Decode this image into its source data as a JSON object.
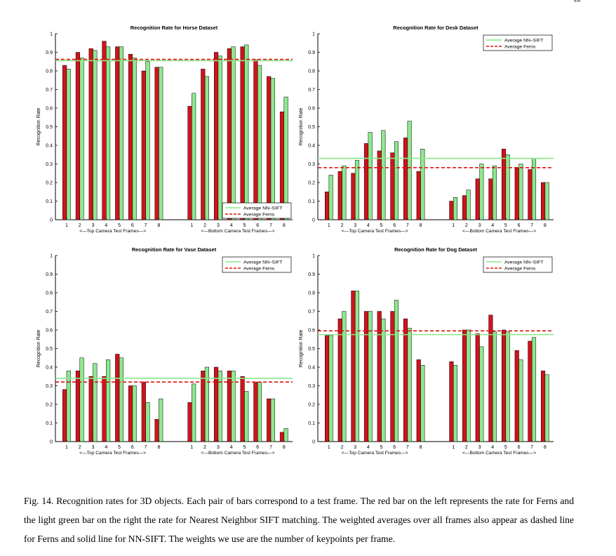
{
  "figure": {
    "caption": "Fig. 14.   Recognition rates for 3D objects. Each pair of bars correspond to a test frame. The red bar on the left represents the rate for Ferns and the light green bar on the right the rate for Nearest Neighbor SIFT matching. The weighted averages over all frames also appear as dashed line for Ferns and solid line for NN-SIFT. The weights we use are the number of keypoints per frame.",
    "page_number": "22"
  },
  "colors": {
    "ferns": "#d2121b",
    "sift": "#8ee88e",
    "ferns_line": "#e01010",
    "sift_line": "#88e888",
    "stroke": "#000000"
  },
  "chart_data": [
    {
      "type": "bar",
      "title": "Recognition Rate for Horse Dataset",
      "ylabel": "Recognition Rate",
      "ylim": [
        0,
        1
      ],
      "yticks": [
        "0",
        "0.1",
        "0.2",
        "0.3",
        "0.4",
        "0.5",
        "0.6",
        "0.7",
        "0.8",
        "0.9",
        "1"
      ],
      "group_labels": [
        "<—Top Camera Test Frames—>",
        "<—Bottom Camera Test Frames—>"
      ],
      "groups": [
        {
          "categories": [
            "1",
            "2",
            "3",
            "4",
            "5",
            "6",
            "7",
            "8"
          ],
          "ferns": [
            0.83,
            0.9,
            0.92,
            0.96,
            0.93,
            0.89,
            0.8,
            0.82
          ],
          "sift": [
            0.81,
            0.87,
            0.91,
            0.93,
            0.93,
            0.87,
            0.85,
            0.82
          ]
        },
        {
          "categories": [
            "1",
            "2",
            "3",
            "4",
            "5",
            "6",
            "7",
            "8"
          ],
          "ferns": [
            0.61,
            0.81,
            0.9,
            0.92,
            0.93,
            0.86,
            0.77,
            0.58
          ],
          "sift": [
            0.68,
            0.77,
            0.88,
            0.93,
            0.94,
            0.83,
            0.76,
            0.66
          ]
        }
      ],
      "avg_sift": 0.855,
      "avg_ferns": 0.862,
      "legend": {
        "position": "bottom-right",
        "entries": [
          "Average NN–SIFT",
          "Average Ferns"
        ]
      }
    },
    {
      "type": "bar",
      "title": "Recognition Rate for Desk Dataset",
      "ylabel": "Recognition Rate",
      "ylim": [
        0,
        1
      ],
      "yticks": [
        "0",
        "0.1",
        "0.2",
        "0.3",
        "0.4",
        "0.5",
        "0.6",
        "0.7",
        "0.8",
        "0.9",
        "1"
      ],
      "group_labels": [
        "<—Top Camera Test Frames—>",
        "<—Bottom Camera Test Frames—>"
      ],
      "groups": [
        {
          "categories": [
            "1",
            "2",
            "3",
            "4",
            "5",
            "6",
            "7",
            "8"
          ],
          "ferns": [
            0.15,
            0.26,
            0.25,
            0.41,
            0.37,
            0.36,
            0.44,
            0.26
          ],
          "sift": [
            0.24,
            0.29,
            0.32,
            0.47,
            0.48,
            0.42,
            0.53,
            0.38
          ]
        },
        {
          "categories": [
            "1",
            "2",
            "3",
            "4",
            "5",
            "6",
            "7",
            "8"
          ],
          "ferns": [
            0.1,
            0.13,
            0.22,
            0.22,
            0.38,
            0.28,
            0.27,
            0.2
          ],
          "sift": [
            0.12,
            0.16,
            0.3,
            0.29,
            0.35,
            0.3,
            0.33,
            0.2
          ]
        }
      ],
      "avg_sift": 0.33,
      "avg_ferns": 0.28,
      "legend": {
        "position": "top-right",
        "entries": [
          "Average NN–SIFT",
          "Average Ferns"
        ]
      }
    },
    {
      "type": "bar",
      "title": "Recognition Rate for Vase Dataset",
      "ylabel": "Recognition Rate",
      "ylim": [
        0,
        1
      ],
      "yticks": [
        "0",
        "0.1",
        "0.2",
        "0.3",
        "0.4",
        "0.5",
        "0.6",
        "0.7",
        "0.8",
        "0.9",
        "1"
      ],
      "group_labels": [
        "<—Top Camera Test Frames—>",
        "<—Bottom Camera Test Frames—>"
      ],
      "groups": [
        {
          "categories": [
            "1",
            "2",
            "3",
            "4",
            "5",
            "6",
            "7",
            "8"
          ],
          "ferns": [
            0.28,
            0.38,
            0.35,
            0.35,
            0.47,
            0.3,
            0.32,
            0.12
          ],
          "sift": [
            0.38,
            0.45,
            0.42,
            0.44,
            0.45,
            0.3,
            0.21,
            0.23
          ]
        },
        {
          "categories": [
            "1",
            "2",
            "3",
            "4",
            "5",
            "6",
            "7",
            "8"
          ],
          "ferns": [
            0.21,
            0.38,
            0.4,
            0.38,
            0.35,
            0.32,
            0.23,
            0.05
          ],
          "sift": [
            0.31,
            0.4,
            0.38,
            0.38,
            0.27,
            0.32,
            0.23,
            0.07
          ]
        }
      ],
      "avg_sift": 0.34,
      "avg_ferns": 0.32,
      "legend": {
        "position": "top-right",
        "entries": [
          "Average NN–SIFT",
          "Average Ferns"
        ]
      }
    },
    {
      "type": "bar",
      "title": "Recognition Rate for Dog Dataset",
      "ylabel": "Recognition Rate",
      "ylim": [
        0,
        1
      ],
      "yticks": [
        "0",
        "0.1",
        "0.2",
        "0.3",
        "0.4",
        "0.5",
        "0.6",
        "0.7",
        "0.8",
        "0.9",
        "1"
      ],
      "group_labels": [
        "<—Top Camera Test Frames—>",
        "<—Bottom Camera Test Frames—>"
      ],
      "groups": [
        {
          "categories": [
            "1",
            "2",
            "3",
            "4",
            "5",
            "6",
            "7",
            "8"
          ],
          "ferns": [
            0.57,
            0.66,
            0.81,
            0.7,
            0.7,
            0.7,
            0.66,
            0.44
          ],
          "sift": [
            0.57,
            0.7,
            0.81,
            0.7,
            0.66,
            0.76,
            0.61,
            0.41
          ]
        },
        {
          "categories": [
            "1",
            "2",
            "3",
            "4",
            "5",
            "6",
            "7",
            "8"
          ],
          "ferns": [
            0.43,
            0.6,
            0.58,
            0.68,
            0.6,
            0.49,
            0.54,
            0.38
          ],
          "sift": [
            0.41,
            0.6,
            0.51,
            0.59,
            0.59,
            0.44,
            0.56,
            0.36
          ]
        }
      ],
      "avg_sift": 0.575,
      "avg_ferns": 0.595,
      "legend": {
        "position": "top-right",
        "entries": [
          "Average NN–SIFT",
          "Average Ferns"
        ]
      }
    }
  ]
}
